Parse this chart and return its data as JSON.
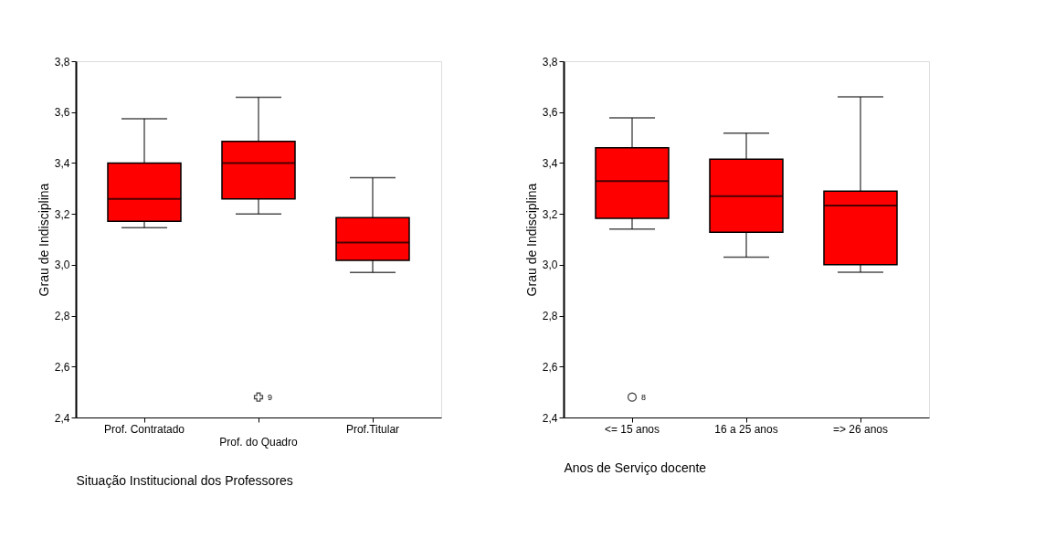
{
  "chart_data": [
    {
      "type": "box",
      "categories": [
        "Prof. Contratado",
        "Prof. do Quadro",
        "Prof.Titular"
      ],
      "xlabel": "Situação Institucional dos Professores",
      "ylabel": "Grau de Indisciplina",
      "ylim": [
        2.4,
        3.8
      ],
      "yticks": [
        {
          "value": 2.4,
          "label": "2,4"
        },
        {
          "value": 2.6,
          "label": "2,6"
        },
        {
          "value": 2.8,
          "label": "2,8"
        },
        {
          "value": 3.0,
          "label": "3,0"
        },
        {
          "value": 3.2,
          "label": "3,2"
        },
        {
          "value": 3.4,
          "label": "3,4"
        },
        {
          "value": 3.6,
          "label": "3,6"
        },
        {
          "value": 3.8,
          "label": "3,8"
        }
      ],
      "marker": "cross",
      "series": [
        {
          "color": "#ff0000",
          "boxes": [
            {
              "low": 3.146,
              "q1": 3.171,
              "median": 3.259,
              "q3": 3.4,
              "high": 3.574
            },
            {
              "low": 3.2,
              "q1": 3.259,
              "median": 3.4,
              "q3": 3.485,
              "high": 3.658,
              "outliers": [
                2.48
              ]
            },
            {
              "low": 2.97,
              "q1": 3.017,
              "median": 3.087,
              "q3": 3.185,
              "high": 3.342
            }
          ]
        }
      ],
      "annotations": [
        "9"
      ]
    },
    {
      "type": "box",
      "categories": [
        "<= 15 anos",
        "16 a 25 anos",
        "=> 26 anos"
      ],
      "xlabel": "Anos de Serviço docente",
      "ylabel": "Grau de Indisciplina",
      "ylim": [
        2.4,
        3.8
      ],
      "yticks": [
        {
          "value": 2.4,
          "label": "2,4"
        },
        {
          "value": 2.6,
          "label": "2,6"
        },
        {
          "value": 2.8,
          "label": "2,8"
        },
        {
          "value": 3.0,
          "label": "3,0"
        },
        {
          "value": 3.2,
          "label": "3,2"
        },
        {
          "value": 3.4,
          "label": "3,4"
        },
        {
          "value": 3.6,
          "label": "3,6"
        },
        {
          "value": 3.8,
          "label": "3,8"
        }
      ],
      "marker": "circle",
      "series": [
        {
          "color": "#ff0000",
          "boxes": [
            {
              "low": 3.14,
              "q1": 3.183,
              "median": 3.329,
              "q3": 3.46,
              "high": 3.577,
              "outliers": [
                2.48
              ]
            },
            {
              "low": 3.03,
              "q1": 3.128,
              "median": 3.27,
              "q3": 3.415,
              "high": 3.517
            },
            {
              "low": 2.971,
              "q1": 3.0,
              "median": 3.233,
              "q3": 3.289,
              "high": 3.66
            }
          ]
        }
      ],
      "annotations": [
        "8"
      ]
    }
  ]
}
